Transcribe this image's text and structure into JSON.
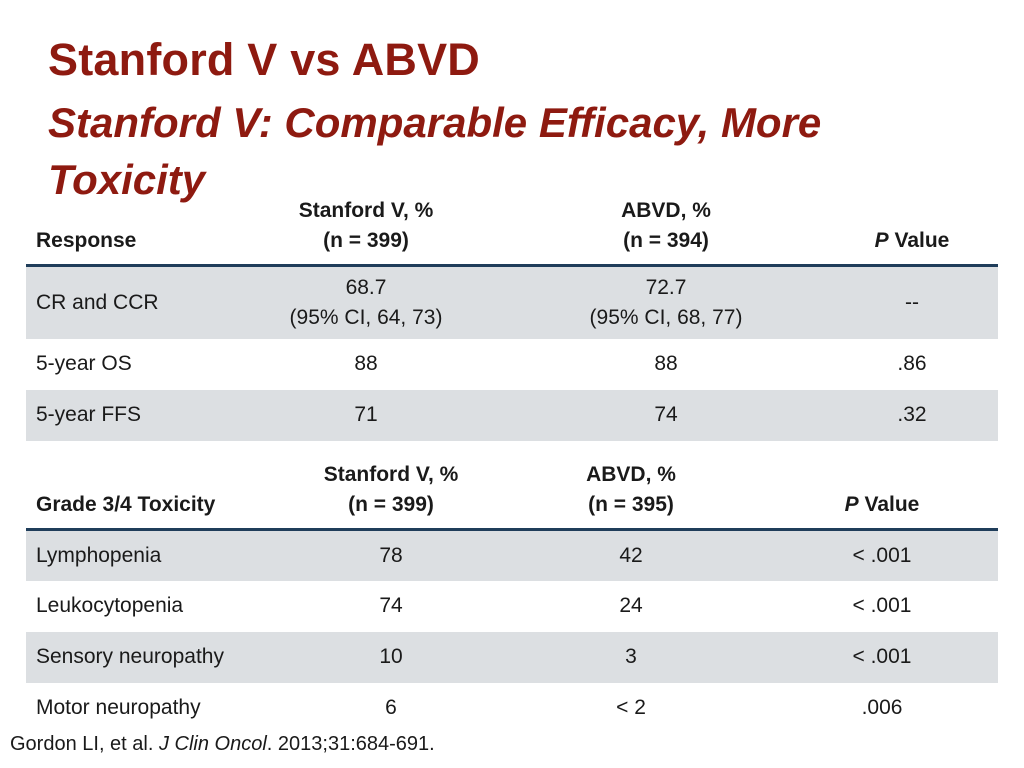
{
  "slide": {
    "title": "Stanford V vs ABVD",
    "subtitle": "Stanford V: Comparable Efficacy, More Toxicity"
  },
  "table1": {
    "headers": {
      "col1": "Response",
      "col2_line1": "Stanford V, %",
      "col2_line2": "(n = 399)",
      "col3_line1": "ABVD, %",
      "col3_line2": "(n = 394)",
      "col4_p": "P",
      "col4_rest": " Value"
    },
    "rows": [
      {
        "label": "CR and CCR",
        "stanford_value": "68.7",
        "stanford_ci": "(95% CI, 64, 73)",
        "abvd_value": "72.7",
        "abvd_ci": "(95% CI, 68, 77)",
        "p": "--"
      },
      {
        "label": "5-year OS",
        "stanford": "88",
        "abvd": "88",
        "p": ".86"
      },
      {
        "label": "5-year FFS",
        "stanford": "71",
        "abvd": "74",
        "p": ".32"
      }
    ]
  },
  "table2": {
    "headers": {
      "col1": "Grade 3/4 Toxicity",
      "col2_line1": "Stanford V, %",
      "col2_line2": "(n = 399)",
      "col3_line1": "ABVD, %",
      "col3_line2": "(n = 395)",
      "col4_p": "P",
      "col4_rest": " Value"
    },
    "rows": [
      {
        "label": "Lymphopenia",
        "stanford": "78",
        "abvd": "42",
        "p": "< .001"
      },
      {
        "label": "Leukocytopenia",
        "stanford": "74",
        "abvd": "24",
        "p": "< .001"
      },
      {
        "label": "Sensory neuropathy",
        "stanford": "10",
        "abvd": "3",
        "p": "< .001"
      },
      {
        "label": "Motor neuropathy",
        "stanford": "6",
        "abvd": "< 2",
        "p": ".006"
      }
    ]
  },
  "citation": {
    "authors": "Gordon LI, et al. ",
    "journal": "J Clin Oncol",
    "details": ". 2013;31:684-691."
  },
  "colors": {
    "title": "#8e1a10",
    "header_rule": "#1f3d5a",
    "row_shade": "#dcdfe2"
  }
}
